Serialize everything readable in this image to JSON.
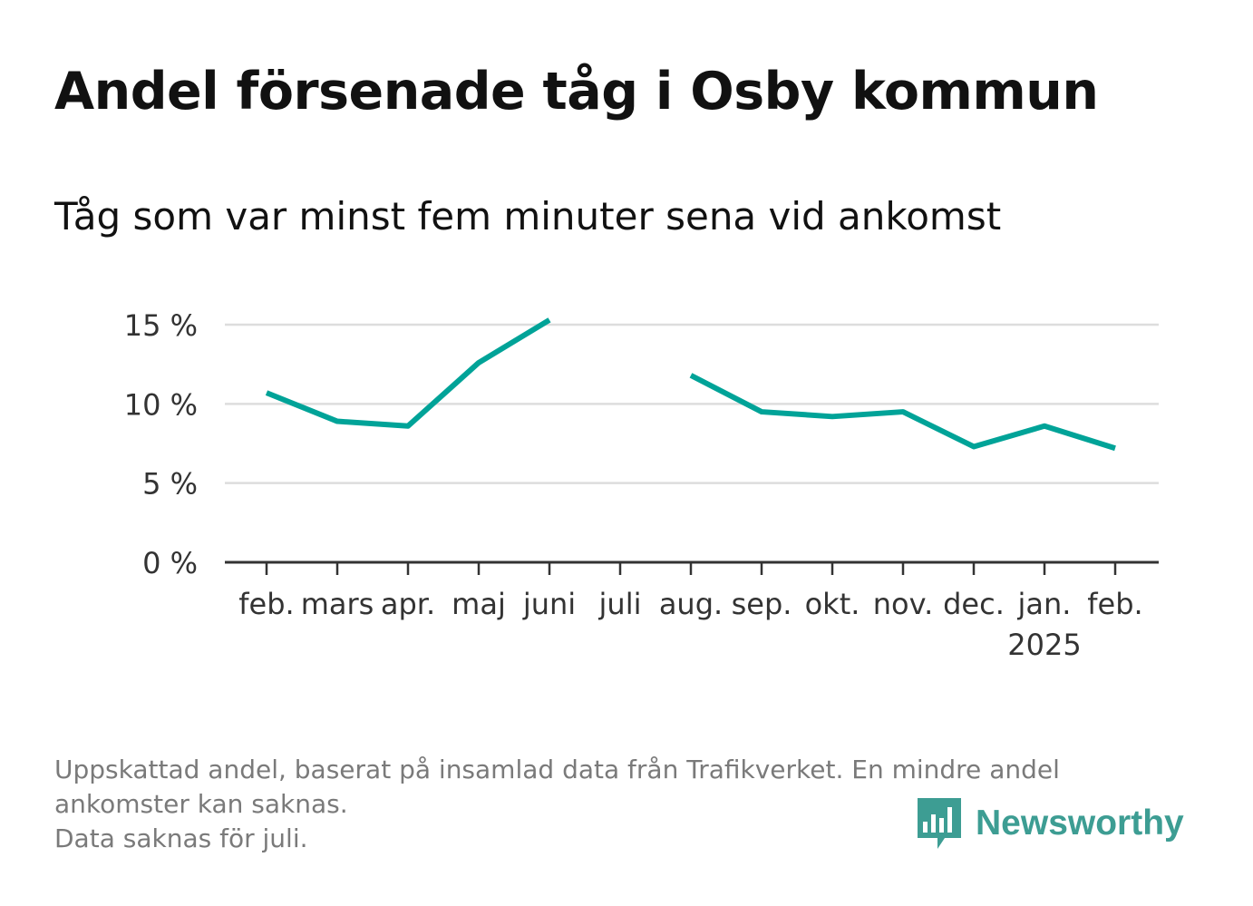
{
  "title": "Andel försenade tåg i Osby kommun",
  "subtitle": "Tåg som var minst fem minuter sena vid ankomst",
  "footnote": {
    "line1": "Uppskattad andel, baserat på insamlad data från Trafikverket. En mindre andel",
    "line2": "ankomster kan saknas.",
    "line3": "Data saknas för juli."
  },
  "brand": {
    "name": "Newsworthy",
    "icon": "newsworthy-logo-icon",
    "color": "#3d9d93"
  },
  "chart_data": {
    "type": "line",
    "categories": [
      "feb.",
      "mars",
      "apr.",
      "maj",
      "juni",
      "juli",
      "aug.",
      "sep.",
      "okt.",
      "nov.",
      "dec.",
      "jan.",
      "feb."
    ],
    "year_label": "2025",
    "series": [
      {
        "values": [
          10.7,
          8.9,
          8.6,
          12.6,
          15.3,
          null,
          11.8,
          9.5,
          9.2,
          9.5,
          7.3,
          8.6,
          7.2
        ],
        "color": "#00a398"
      }
    ],
    "yticks": [
      0,
      5,
      10,
      15
    ],
    "ytick_labels": [
      "0 %",
      "5 %",
      "10 %",
      "15 %"
    ],
    "ylim": [
      0,
      15
    ],
    "grid": true,
    "legend": "none"
  }
}
